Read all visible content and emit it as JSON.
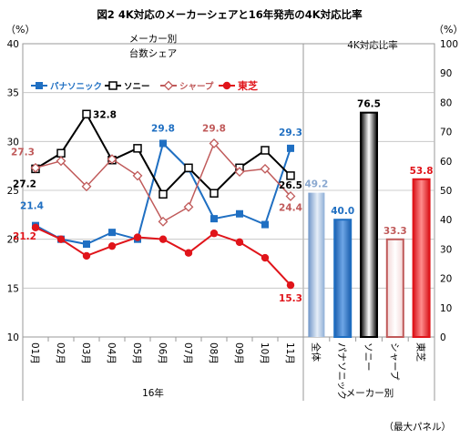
{
  "title": "図2 4K対応のメーカーシェアと16年発売の4K対応比率",
  "left_unit": "（%）",
  "right_unit": "（%）",
  "left_subtitle_line1": "メーカー別",
  "left_subtitle_line2": "台数シェア",
  "right_subtitle": "4K対応比率",
  "left_xgroup_label": "16年",
  "right_xgroup_label": "メーカー別",
  "footnote": "（最大パネル）",
  "colors": {
    "panasonic": "#1f6fc2",
    "sony": "#000000",
    "sharp": "#c05a5a",
    "toshiba": "#e0141a",
    "axis": "#999999",
    "grid": "#bfbfbf"
  },
  "chart_data": [
    {
      "type": "line",
      "title": "メーカー別 台数シェア",
      "ylabel": "（%）",
      "ylim": [
        10,
        40
      ],
      "yticks": [
        10,
        15,
        20,
        25,
        30,
        35,
        40
      ],
      "categories": [
        "01月",
        "02月",
        "03月",
        "04月",
        "05月",
        "06月",
        "07月",
        "08月",
        "09月",
        "10月",
        "11月"
      ],
      "legend_position": "top-left",
      "series": [
        {
          "name": "パナソニック",
          "key": "panasonic",
          "marker": "square",
          "values": [
            21.4,
            20.0,
            19.5,
            20.7,
            20.0,
            29.8,
            27.2,
            22.1,
            22.6,
            21.5,
            29.3
          ]
        },
        {
          "name": "ソニー",
          "key": "sony",
          "marker": "square-open",
          "values": [
            27.2,
            28.8,
            32.8,
            28.1,
            29.3,
            24.6,
            27.3,
            24.7,
            27.3,
            29.1,
            26.5
          ]
        },
        {
          "name": "シャープ",
          "key": "sharp",
          "marker": "diamond-open",
          "values": [
            27.3,
            28.0,
            25.4,
            28.2,
            26.5,
            21.8,
            23.3,
            29.8,
            26.9,
            27.2,
            24.4
          ]
        },
        {
          "name": "東芝",
          "key": "toshiba",
          "marker": "circle",
          "values": [
            21.2,
            20.0,
            18.3,
            19.3,
            20.2,
            20.0,
            18.6,
            20.6,
            19.7,
            18.1,
            15.3
          ]
        }
      ],
      "labels": [
        {
          "series": "sharp",
          "index": 0,
          "text": "27.3"
        },
        {
          "series": "sony",
          "index": 0,
          "text": "27.2"
        },
        {
          "series": "panasonic",
          "index": 0,
          "text": "21.4"
        },
        {
          "series": "toshiba",
          "index": 0,
          "text": "21.2"
        },
        {
          "series": "sony",
          "index": 2,
          "text": "32.8"
        },
        {
          "series": "panasonic",
          "index": 5,
          "text": "29.8"
        },
        {
          "series": "sharp",
          "index": 7,
          "text": "29.8"
        },
        {
          "series": "panasonic",
          "index": 10,
          "text": "29.3"
        },
        {
          "series": "sony",
          "index": 10,
          "text": "26.5"
        },
        {
          "series": "sharp",
          "index": 10,
          "text": "24.4"
        },
        {
          "series": "toshiba",
          "index": 10,
          "text": "15.3"
        }
      ]
    },
    {
      "type": "bar",
      "title": "4K対応比率",
      "ylabel": "（%）",
      "ylim": [
        0,
        100
      ],
      "yticks": [
        0,
        10,
        20,
        30,
        40,
        50,
        60,
        70,
        80,
        90,
        100
      ],
      "categories": [
        "全体",
        "パナソニック",
        "ソニー",
        "シャープ",
        "東芝"
      ],
      "values": [
        49.2,
        40.0,
        76.5,
        33.3,
        53.8
      ],
      "value_labels": [
        "49.2",
        "40.0",
        "76.5",
        "33.3",
        "53.8"
      ],
      "bar_colors": [
        "#9bb8dd",
        "#1f6fc2",
        "#000000",
        "#c05a5a",
        "#e0141a"
      ],
      "label_colors": [
        "#8aa8d0",
        "#1f6fc2",
        "#000000",
        "#c05a5a",
        "#e0141a"
      ]
    }
  ]
}
